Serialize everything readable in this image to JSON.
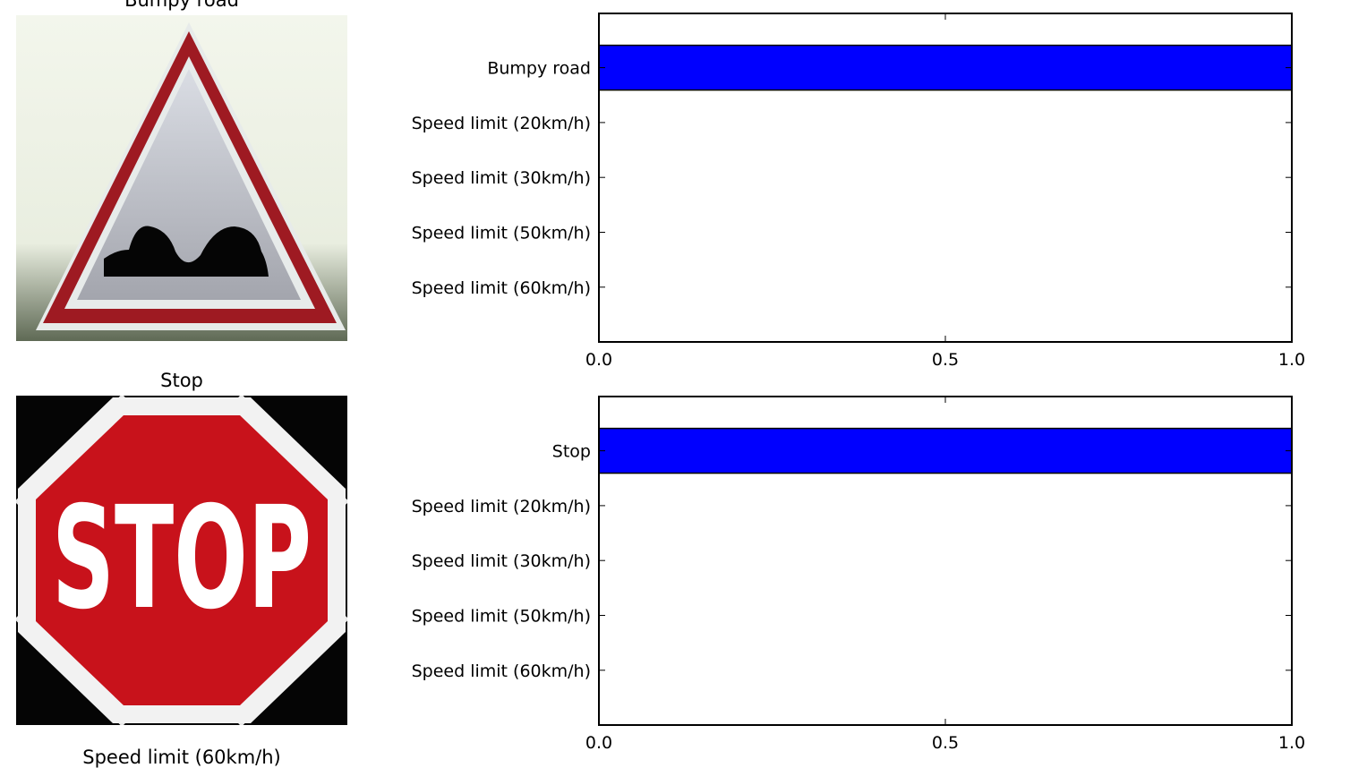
{
  "panels": [
    {
      "image_title": "Bumpy road",
      "sign_icon": "bumpy-road-sign"
    },
    {
      "image_title": "Stop",
      "sign_icon": "stop-sign",
      "sign_text": "STOP"
    },
    {
      "image_title": "Speed limit (60km/h)"
    }
  ],
  "colors": {
    "bar": "#0000ff",
    "axes": "#000000",
    "background": "#ffffff"
  },
  "chart_data": [
    {
      "type": "bar",
      "orientation": "horizontal",
      "categories": [
        "Bumpy road",
        "Speed limit (20km/h)",
        "Speed limit (30km/h)",
        "Speed limit (50km/h)",
        "Speed limit (60km/h)"
      ],
      "values": [
        1.0,
        0.0,
        0.0,
        0.0,
        0.0
      ],
      "xlim": [
        0.0,
        1.0
      ],
      "xticks": [
        "0.0",
        "0.5",
        "1.0"
      ],
      "grid": false
    },
    {
      "type": "bar",
      "orientation": "horizontal",
      "categories": [
        "Stop",
        "Speed limit (20km/h)",
        "Speed limit (30km/h)",
        "Speed limit (50km/h)",
        "Speed limit (60km/h)"
      ],
      "values": [
        1.0,
        0.0,
        0.0,
        0.0,
        0.0
      ],
      "xlim": [
        0.0,
        1.0
      ],
      "xticks": [
        "0.0",
        "0.5",
        "1.0"
      ],
      "grid": false
    }
  ]
}
